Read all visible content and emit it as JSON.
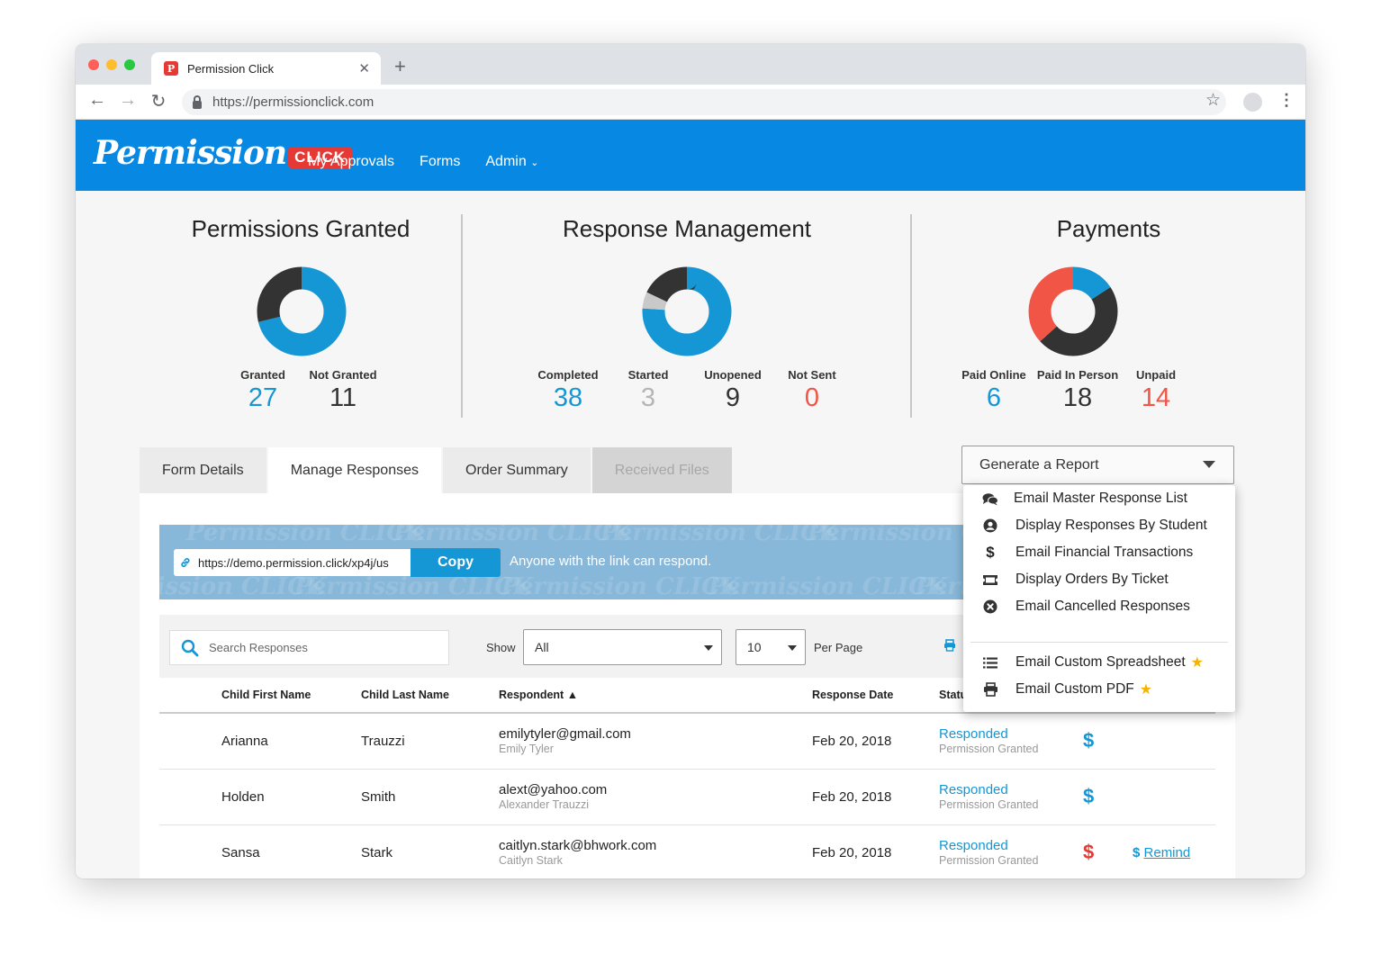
{
  "browser": {
    "tab_title": "Permission Click",
    "favicon_letter": "P",
    "url": "https://permissionclick.com"
  },
  "app": {
    "logo_script": "Permission",
    "logo_badge": "CLICK",
    "nav": [
      "My Approvals",
      "Forms",
      "Admin"
    ]
  },
  "stats": {
    "permissions": {
      "title": "Permissions Granted",
      "metrics": [
        {
          "label": "Granted",
          "value": "27",
          "color": "#1497d4"
        },
        {
          "label": "Not Granted",
          "value": "11",
          "color": "#333333"
        }
      ]
    },
    "responses": {
      "title": "Response Management",
      "metrics": [
        {
          "label": "Completed",
          "value": "38",
          "color": "#1497d4"
        },
        {
          "label": "Started",
          "value": "3",
          "color": "#b5b5b5"
        },
        {
          "label": "Unopened",
          "value": "9",
          "color": "#333333"
        },
        {
          "label": "Not Sent",
          "value": "0",
          "color": "#f05545"
        }
      ]
    },
    "payments": {
      "title": "Payments",
      "metrics": [
        {
          "label": "Paid Online",
          "value": "6",
          "color": "#1497d4"
        },
        {
          "label": "Paid In Person",
          "value": "18",
          "color": "#333333"
        },
        {
          "label": "Unpaid",
          "value": "14",
          "color": "#f05545"
        }
      ]
    }
  },
  "tabs": [
    "Form Details",
    "Manage Responses",
    "Order Summary",
    "Received Files"
  ],
  "report": {
    "select_label": "Generate a Report",
    "items": [
      {
        "label": "Email Master Response List",
        "icon": "comments-icon"
      },
      {
        "label": "Display Responses By Student",
        "icon": "user-circle-icon"
      },
      {
        "label": "Email Financial Transactions",
        "icon": "dollar-icon"
      },
      {
        "label": "Display Orders By Ticket",
        "icon": "ticket-icon"
      },
      {
        "label": "Email Cancelled Responses",
        "icon": "times-circle-icon"
      },
      {
        "label": "Email Custom Spreadsheet",
        "icon": "list-icon",
        "premium": true
      },
      {
        "label": "Email Custom PDF",
        "icon": "printer-icon",
        "premium": true
      }
    ]
  },
  "share": {
    "link": "https://demo.permission.click/xp4j/us",
    "copy_label": "Copy",
    "note": "Anyone with the link can respond."
  },
  "filters": {
    "search_placeholder": "Search Responses",
    "show_label": "Show",
    "show_value": "All",
    "per_page_value": "10",
    "per_page_label": "Per Page"
  },
  "table": {
    "columns": [
      "Child First Name",
      "Child Last Name",
      "Respondent ▲",
      "Response Date",
      "Statu"
    ],
    "rows": [
      {
        "first": "Arianna",
        "last": "Trauzzi",
        "email": "emilytyler@gmail.com",
        "name": "Emily Tyler",
        "date": "Feb 20, 2018",
        "status": "Responded",
        "sub_status": "Permission Granted",
        "payment_color": "#1497d4",
        "remind": ""
      },
      {
        "first": "Holden",
        "last": "Smith",
        "email": "alext@yahoo.com",
        "name": "Alexander Trauzzi",
        "date": "Feb 20, 2018",
        "status": "Responded",
        "sub_status": "Permission Granted",
        "payment_color": "#1497d4",
        "remind": ""
      },
      {
        "first": "Sansa",
        "last": "Stark",
        "email": "caitlyn.stark@bhwork.com",
        "name": "Caitlyn Stark",
        "date": "Feb 20, 2018",
        "status": "Responded",
        "sub_status": "Permission Granted",
        "payment_color": "#e53935",
        "remind": "Remind"
      }
    ]
  },
  "chart_data": [
    {
      "type": "pie",
      "categories": [
        "Granted",
        "Not Granted"
      ],
      "values": [
        27,
        11
      ],
      "colors": [
        "#1497d4",
        "#333333"
      ]
    },
    {
      "type": "pie",
      "categories": [
        "Completed",
        "Started",
        "Unopened",
        "Not Sent"
      ],
      "values": [
        38,
        3,
        9,
        0
      ],
      "colors": [
        "#1497d4",
        "#c9c9c9",
        "#333333",
        "#f05545"
      ]
    },
    {
      "type": "pie",
      "categories": [
        "Paid Online",
        "Paid In Person",
        "Unpaid"
      ],
      "values": [
        6,
        18,
        14
      ],
      "colors": [
        "#1497d4",
        "#333333",
        "#f05545"
      ]
    }
  ]
}
